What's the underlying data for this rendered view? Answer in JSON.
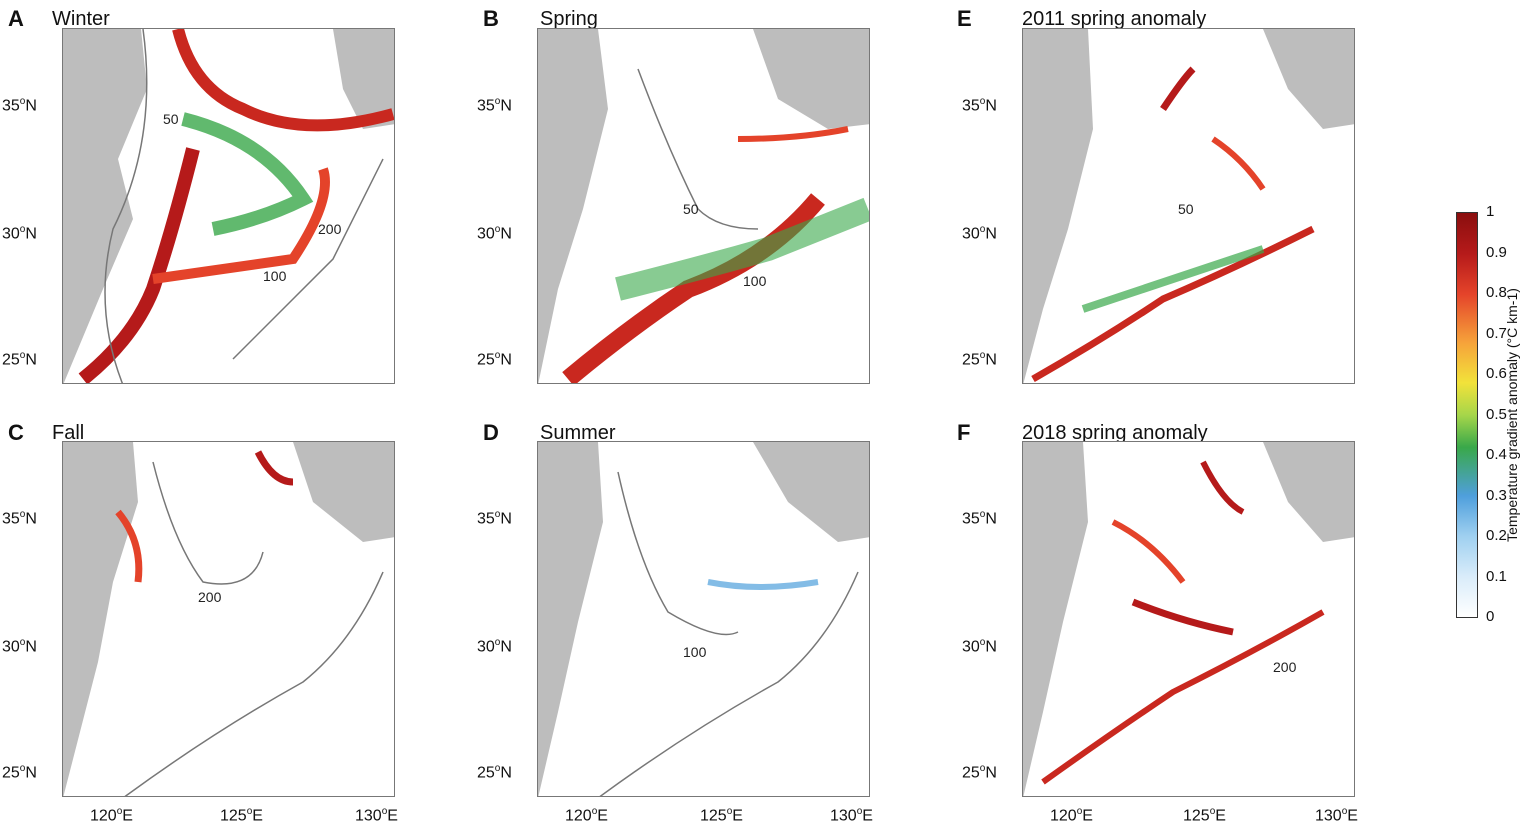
{
  "panels": [
    {
      "letter": "A",
      "title": "Winter"
    },
    {
      "letter": "B",
      "title": "Spring"
    },
    {
      "letter": "E",
      "title": "2011 spring  anomaly"
    },
    {
      "letter": "C",
      "title": "Fall"
    },
    {
      "letter": "D",
      "title": "Summer"
    },
    {
      "letter": "F",
      "title": "2018 spring  anomaly"
    }
  ],
  "lat_ticks": [
    {
      "deg": "35",
      "hemi": "N"
    },
    {
      "deg": "30",
      "hemi": "N"
    },
    {
      "deg": "25",
      "hemi": "N"
    }
  ],
  "lon_ticks": [
    {
      "deg": "120",
      "hemi": "E"
    },
    {
      "deg": "125",
      "hemi": "E"
    },
    {
      "deg": "130",
      "hemi": "E"
    }
  ],
  "contour_labels": [
    "50",
    "100",
    "200",
    "200",
    "100",
    "50",
    "100",
    "50",
    "200"
  ],
  "colorbar": {
    "ticks": [
      "1",
      "0.9",
      "0.8",
      "0.7",
      "0.6",
      "0.5",
      "0.4",
      "0.3",
      "0.2",
      "0.1",
      "0"
    ],
    "label": "Temperature gradient anomaly (°C km-1)",
    "colors": [
      "#ffffff",
      "#9fd0f0",
      "#4f9fdc",
      "#39a84a",
      "#f2e23a",
      "#f6a23a",
      "#e4432a",
      "#8a0e0e"
    ]
  },
  "land_color": "#bdbdbd"
}
